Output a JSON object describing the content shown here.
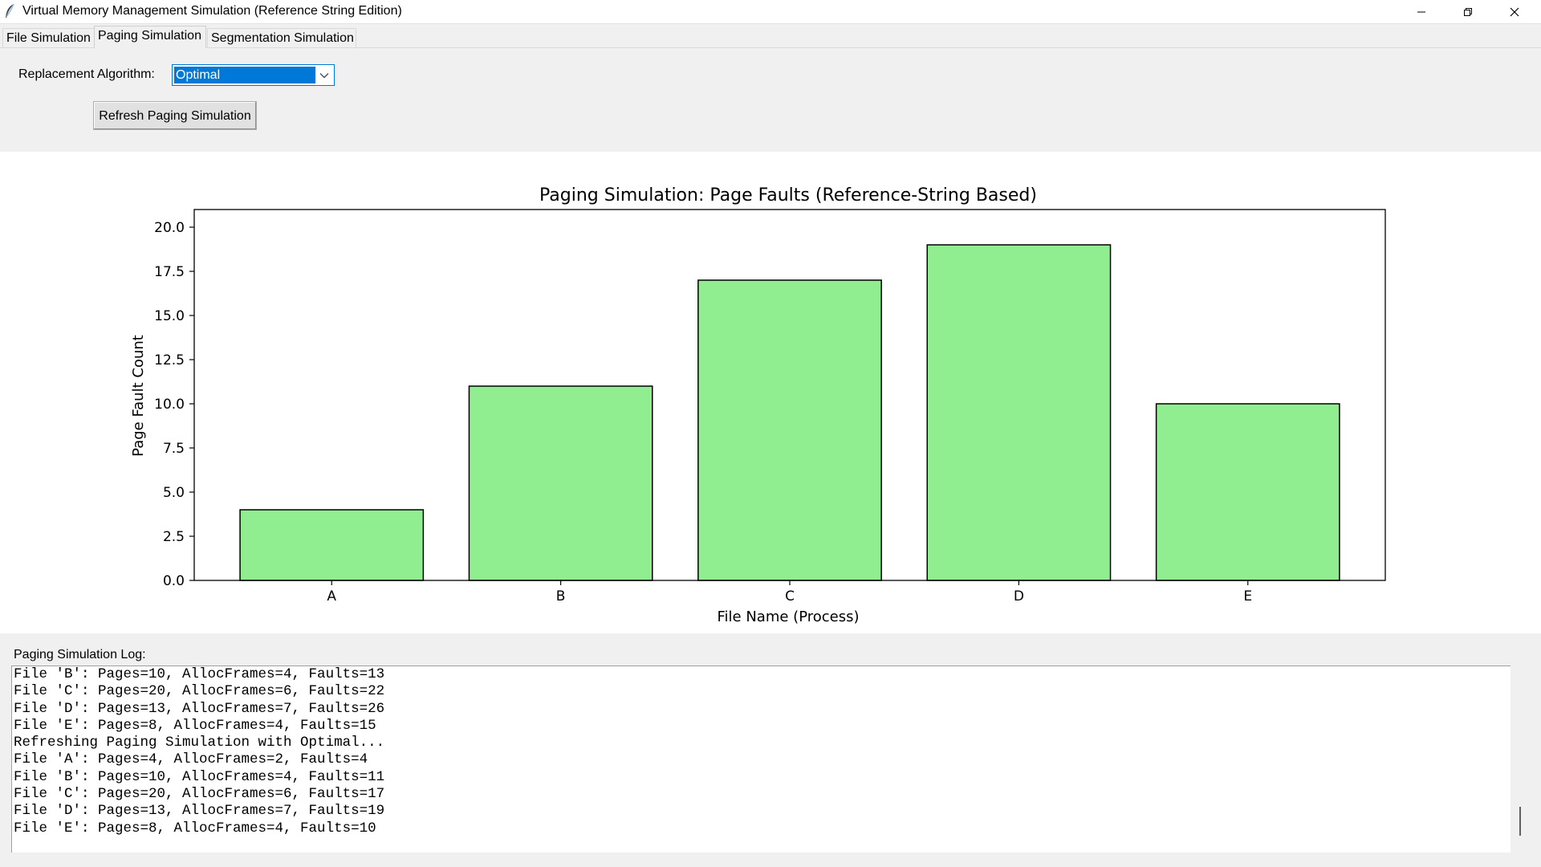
{
  "window": {
    "title": "Virtual Memory Management Simulation (Reference String Edition)",
    "icon": "feather-icon",
    "controls": [
      "minimize-icon",
      "restore-icon",
      "close-icon"
    ]
  },
  "tabs": [
    {
      "label": "File Simulation",
      "active": false
    },
    {
      "label": "Paging Simulation",
      "active": true
    },
    {
      "label": "Segmentation Simulation",
      "active": false
    }
  ],
  "controls": {
    "algorithm_label": "Replacement Algorithm:",
    "algorithm_value": "Optimal",
    "refresh_label": "Refresh Paging Simulation",
    "selection_color": "#0078d7"
  },
  "chart_data": {
    "type": "bar",
    "title": "Paging Simulation: Page Faults (Reference-String Based)",
    "xlabel": "File Name (Process)",
    "ylabel": "Page Fault Count",
    "categories": [
      "A",
      "B",
      "C",
      "D",
      "E"
    ],
    "values": [
      4,
      11,
      17,
      19,
      10
    ],
    "ylim": [
      0,
      21
    ],
    "yticks": [
      "0.0",
      "2.5",
      "5.0",
      "7.5",
      "10.0",
      "12.5",
      "15.0",
      "17.5",
      "20.0"
    ],
    "bar_color": "#90ee90",
    "edge_color": "#000000",
    "grid": false
  },
  "log": {
    "label": "Paging Simulation Log:",
    "lines": [
      "File 'B': Pages=10, AllocFrames=4, Faults=13",
      "File 'C': Pages=20, AllocFrames=6, Faults=22",
      "File 'D': Pages=13, AllocFrames=7, Faults=26",
      "File 'E': Pages=8, AllocFrames=4, Faults=15",
      "Refreshing Paging Simulation with Optimal...",
      "File 'A': Pages=4, AllocFrames=2, Faults=4",
      "File 'B': Pages=10, AllocFrames=4, Faults=11",
      "File 'C': Pages=20, AllocFrames=6, Faults=17",
      "File 'D': Pages=13, AllocFrames=7, Faults=19",
      "File 'E': Pages=8, AllocFrames=4, Faults=10"
    ]
  }
}
